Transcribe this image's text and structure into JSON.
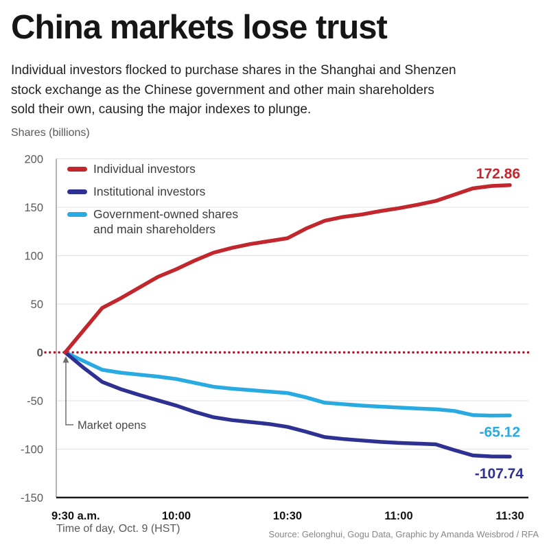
{
  "title": "China markets lose trust",
  "subtitle_lines": [
    "Individual investors flocked to purchase shares in the Shanghai and Shenzen",
    "stock exchange as the Chinese government and other main shareholders",
    "sold their own, causing the major indexes to plunge."
  ],
  "y_axis_label": "Shares (billions)",
  "x_axis_label": "Time of day, Oct. 9 (HST)",
  "source": "Source: Gelonghui, Gogu Data, Graphic by Amanda Weisbrod / RFA",
  "annotations": {
    "market_opens": "Market opens"
  },
  "colors": {
    "individual": "#c1272d",
    "institutional": "#2e3192",
    "government": "#29abe2",
    "zero_line": "#a6192e",
    "grid": "#e0e0e0",
    "bottom_axis": "#1a1a1a",
    "left_axis": "#9b9b9b"
  },
  "legend": [
    {
      "color_key": "individual",
      "label_lines": [
        "Individual investors"
      ]
    },
    {
      "color_key": "institutional",
      "label_lines": [
        "Institutional investors"
      ]
    },
    {
      "color_key": "government",
      "label_lines": [
        "Government-owned shares",
        "and main shareholders"
      ]
    }
  ],
  "chart_data": {
    "type": "line",
    "title": "China markets lose trust",
    "xlabel": "Time of day, Oct. 9 (HST)",
    "ylabel": "Shares (billions)",
    "x_unit": "minutes after 9:30 a.m.",
    "ylim": [
      -150,
      200
    ],
    "grid": true,
    "zero_reference_line": "dotted, dark red",
    "legend_position": "top-left",
    "x": [
      0,
      5,
      10,
      15,
      20,
      25,
      30,
      35,
      40,
      45,
      50,
      55,
      60,
      65,
      70,
      75,
      80,
      85,
      90,
      95,
      100,
      105,
      110,
      115,
      120
    ],
    "xticks": [
      {
        "t": 0,
        "label": "9:30 a.m."
      },
      {
        "t": 30,
        "label": "10:00"
      },
      {
        "t": 60,
        "label": "10:30"
      },
      {
        "t": 90,
        "label": "11:00"
      },
      {
        "t": 120,
        "label": "11:30"
      }
    ],
    "yticks": [
      200,
      150,
      100,
      50,
      0,
      -50,
      -100,
      -150
    ],
    "series": [
      {
        "name": "Individual investors",
        "color": "#c1272d",
        "end_label": "172.86",
        "values": [
          0,
          23,
          46,
          56,
          67,
          78,
          86,
          95,
          103,
          108,
          112,
          115,
          118,
          128,
          136,
          140,
          142.5,
          146,
          149,
          152.5,
          156.5,
          163,
          169.5,
          172,
          172.86
        ]
      },
      {
        "name": "Institutional investors",
        "color": "#2e3192",
        "end_label": "-107.74",
        "values": [
          0,
          -16,
          -30.5,
          -38,
          -44,
          -49.5,
          -55,
          -61.5,
          -67,
          -70,
          -72,
          -74,
          -77,
          -82,
          -87.5,
          -89.5,
          -91,
          -92.5,
          -93.5,
          -94.2,
          -95,
          -101,
          -106.5,
          -107.5,
          -107.74
        ]
      },
      {
        "name": "Government-owned shares and main shareholders",
        "color": "#29abe2",
        "end_label": "-65.12",
        "values": [
          0,
          -9,
          -18,
          -21,
          -23,
          -25,
          -27.5,
          -31.5,
          -35.5,
          -37.5,
          -39,
          -40.5,
          -42,
          -46.5,
          -52,
          -53.5,
          -55,
          -56,
          -57,
          -58,
          -58.8,
          -60.5,
          -64.8,
          -65.3,
          -65.12
        ]
      }
    ]
  }
}
